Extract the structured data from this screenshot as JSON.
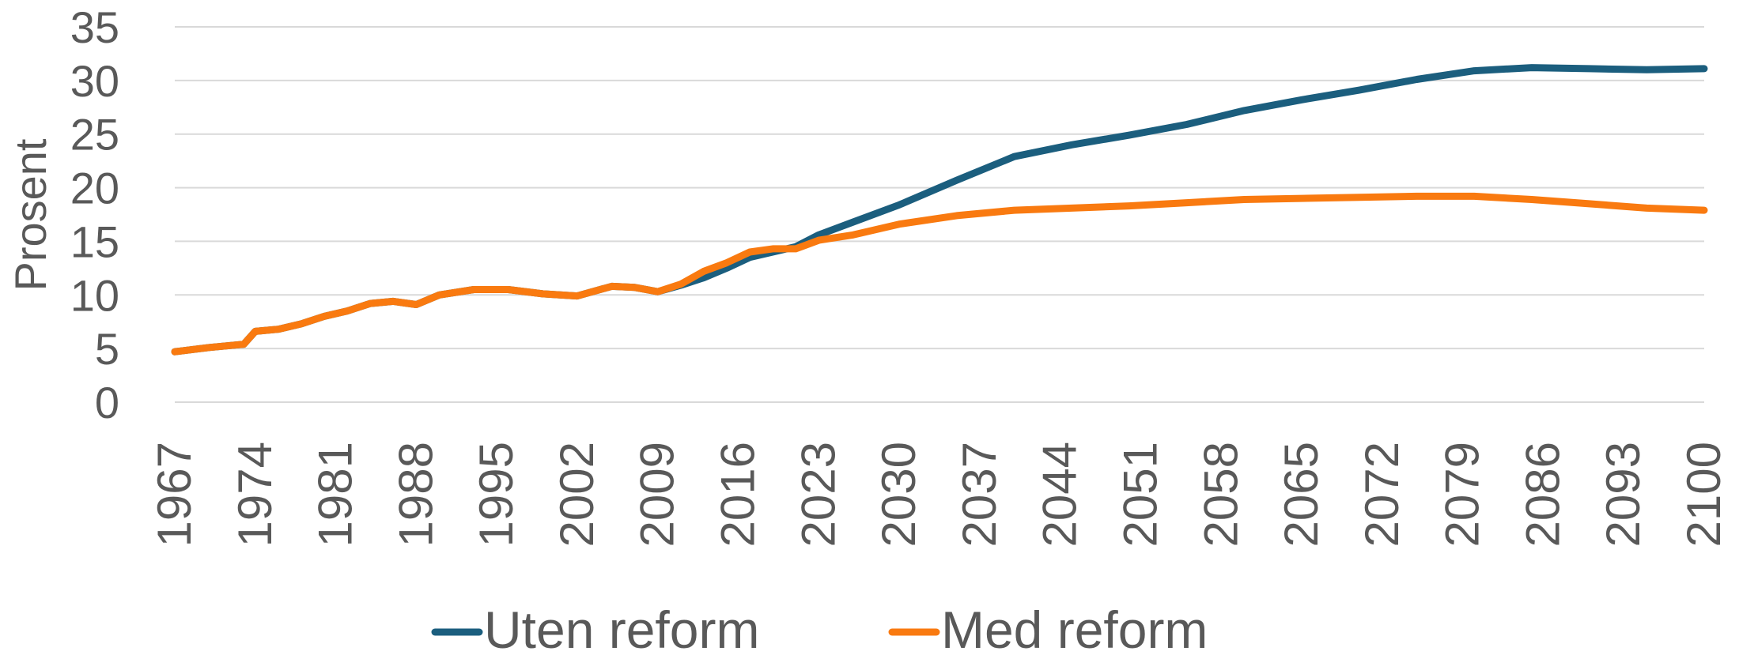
{
  "chart_data": {
    "type": "line",
    "y_label": "Prosent",
    "x": [
      1967,
      1970,
      1973,
      1974,
      1976,
      1978,
      1980,
      1982,
      1984,
      1986,
      1988,
      1990,
      1993,
      1996,
      1999,
      2002,
      2005,
      2007,
      2009,
      2011,
      2013,
      2015,
      2017,
      2019,
      2021,
      2023,
      2026,
      2030,
      2035,
      2040,
      2045,
      2050,
      2055,
      2060,
      2065,
      2070,
      2075,
      2080,
      2085,
      2090,
      2095,
      2100
    ],
    "series": [
      {
        "name": "Uten reform",
        "color": "#1b5e7e",
        "values": [
          4.7,
          5.1,
          5.4,
          6.6,
          6.8,
          7.3,
          8.0,
          8.5,
          9.2,
          9.4,
          9.1,
          10.0,
          10.5,
          10.5,
          10.1,
          9.9,
          10.8,
          10.7,
          10.3,
          10.9,
          11.6,
          12.5,
          13.5,
          14.0,
          14.5,
          15.6,
          16.8,
          18.4,
          20.7,
          22.9,
          24.0,
          24.9,
          25.9,
          27.2,
          28.2,
          29.1,
          30.1,
          30.9,
          31.2,
          31.1,
          31.0,
          31.1
        ]
      },
      {
        "name": "Med reform",
        "color": "#f97a10",
        "values": [
          4.7,
          5.1,
          5.4,
          6.6,
          6.8,
          7.3,
          8.0,
          8.5,
          9.2,
          9.4,
          9.1,
          10.0,
          10.5,
          10.5,
          10.1,
          9.9,
          10.8,
          10.7,
          10.3,
          11.0,
          12.2,
          13.0,
          14.0,
          14.3,
          14.3,
          15.1,
          15.6,
          16.6,
          17.4,
          17.9,
          18.1,
          18.3,
          18.6,
          18.9,
          19.0,
          19.1,
          19.2,
          19.2,
          18.9,
          18.5,
          18.1,
          17.9
        ]
      }
    ],
    "xlim": [
      1967,
      2100
    ],
    "xticks": [
      1967,
      1974,
      1981,
      1988,
      1995,
      2002,
      2009,
      2016,
      2023,
      2030,
      2037,
      2044,
      2051,
      2058,
      2065,
      2072,
      2079,
      2086,
      2093,
      2100
    ],
    "ylim": [
      0,
      35
    ],
    "yticks": [
      0,
      5,
      10,
      15,
      20,
      25,
      30,
      35
    ],
    "grid": true,
    "legend": "bottom"
  }
}
